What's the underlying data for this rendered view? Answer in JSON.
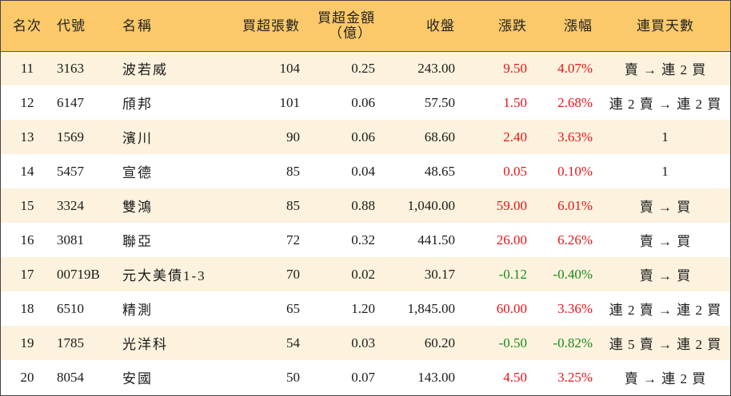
{
  "headers": {
    "rank": "名次",
    "code": "代號",
    "name": "名稱",
    "net_lots": "買超張數",
    "net_amount_line1": "買超金額",
    "net_amount_line2": "（億）",
    "close": "收盤",
    "change": "漲跌",
    "pct": "漲幅",
    "streak": "連買天數"
  },
  "rows": [
    {
      "rank": "11",
      "code": "3163",
      "name": "波若威",
      "net_lots": "104",
      "net_amount": "0.25",
      "close": "243.00",
      "change": "9.50",
      "pct": "4.07%",
      "streak": "賣 → 連 2 買",
      "dir": "up"
    },
    {
      "rank": "12",
      "code": "6147",
      "name": "頎邦",
      "net_lots": "101",
      "net_amount": "0.06",
      "close": "57.50",
      "change": "1.50",
      "pct": "2.68%",
      "streak": "連 2 賣 → 連 2 買",
      "dir": "up"
    },
    {
      "rank": "13",
      "code": "1569",
      "name": "濱川",
      "net_lots": "90",
      "net_amount": "0.06",
      "close": "68.60",
      "change": "2.40",
      "pct": "3.63%",
      "streak": "1",
      "dir": "up"
    },
    {
      "rank": "14",
      "code": "5457",
      "name": "宣德",
      "net_lots": "85",
      "net_amount": "0.04",
      "close": "48.65",
      "change": "0.05",
      "pct": "0.10%",
      "streak": "1",
      "dir": "up"
    },
    {
      "rank": "15",
      "code": "3324",
      "name": "雙鴻",
      "net_lots": "85",
      "net_amount": "0.88",
      "close": "1,040.00",
      "change": "59.00",
      "pct": "6.01%",
      "streak": "賣 → 買",
      "dir": "up"
    },
    {
      "rank": "16",
      "code": "3081",
      "name": "聯亞",
      "net_lots": "72",
      "net_amount": "0.32",
      "close": "441.50",
      "change": "26.00",
      "pct": "6.26%",
      "streak": "賣 → 買",
      "dir": "up"
    },
    {
      "rank": "17",
      "code": "00719B",
      "name": "元大美債1-3",
      "net_lots": "70",
      "net_amount": "0.02",
      "close": "30.17",
      "change": "-0.12",
      "pct": "-0.40%",
      "streak": "賣 → 買",
      "dir": "down"
    },
    {
      "rank": "18",
      "code": "6510",
      "name": "精測",
      "net_lots": "65",
      "net_amount": "1.20",
      "close": "1,845.00",
      "change": "60.00",
      "pct": "3.36%",
      "streak": "連 2 賣 → 連 2 買",
      "dir": "up"
    },
    {
      "rank": "19",
      "code": "1785",
      "name": "光洋科",
      "net_lots": "54",
      "net_amount": "0.03",
      "close": "60.20",
      "change": "-0.50",
      "pct": "-0.82%",
      "streak": "連 5 賣 → 連 2 買",
      "dir": "down"
    },
    {
      "rank": "20",
      "code": "8054",
      "name": "安國",
      "net_lots": "50",
      "net_amount": "0.07",
      "close": "143.00",
      "change": "4.50",
      "pct": "3.25%",
      "streak": "賣 → 連 2 買",
      "dir": "up"
    }
  ],
  "colors": {
    "header_bg": "#fbc96a",
    "odd_row_bg": "#fcf2dd",
    "up": "#e8141b",
    "down": "#1a8a1a"
  }
}
